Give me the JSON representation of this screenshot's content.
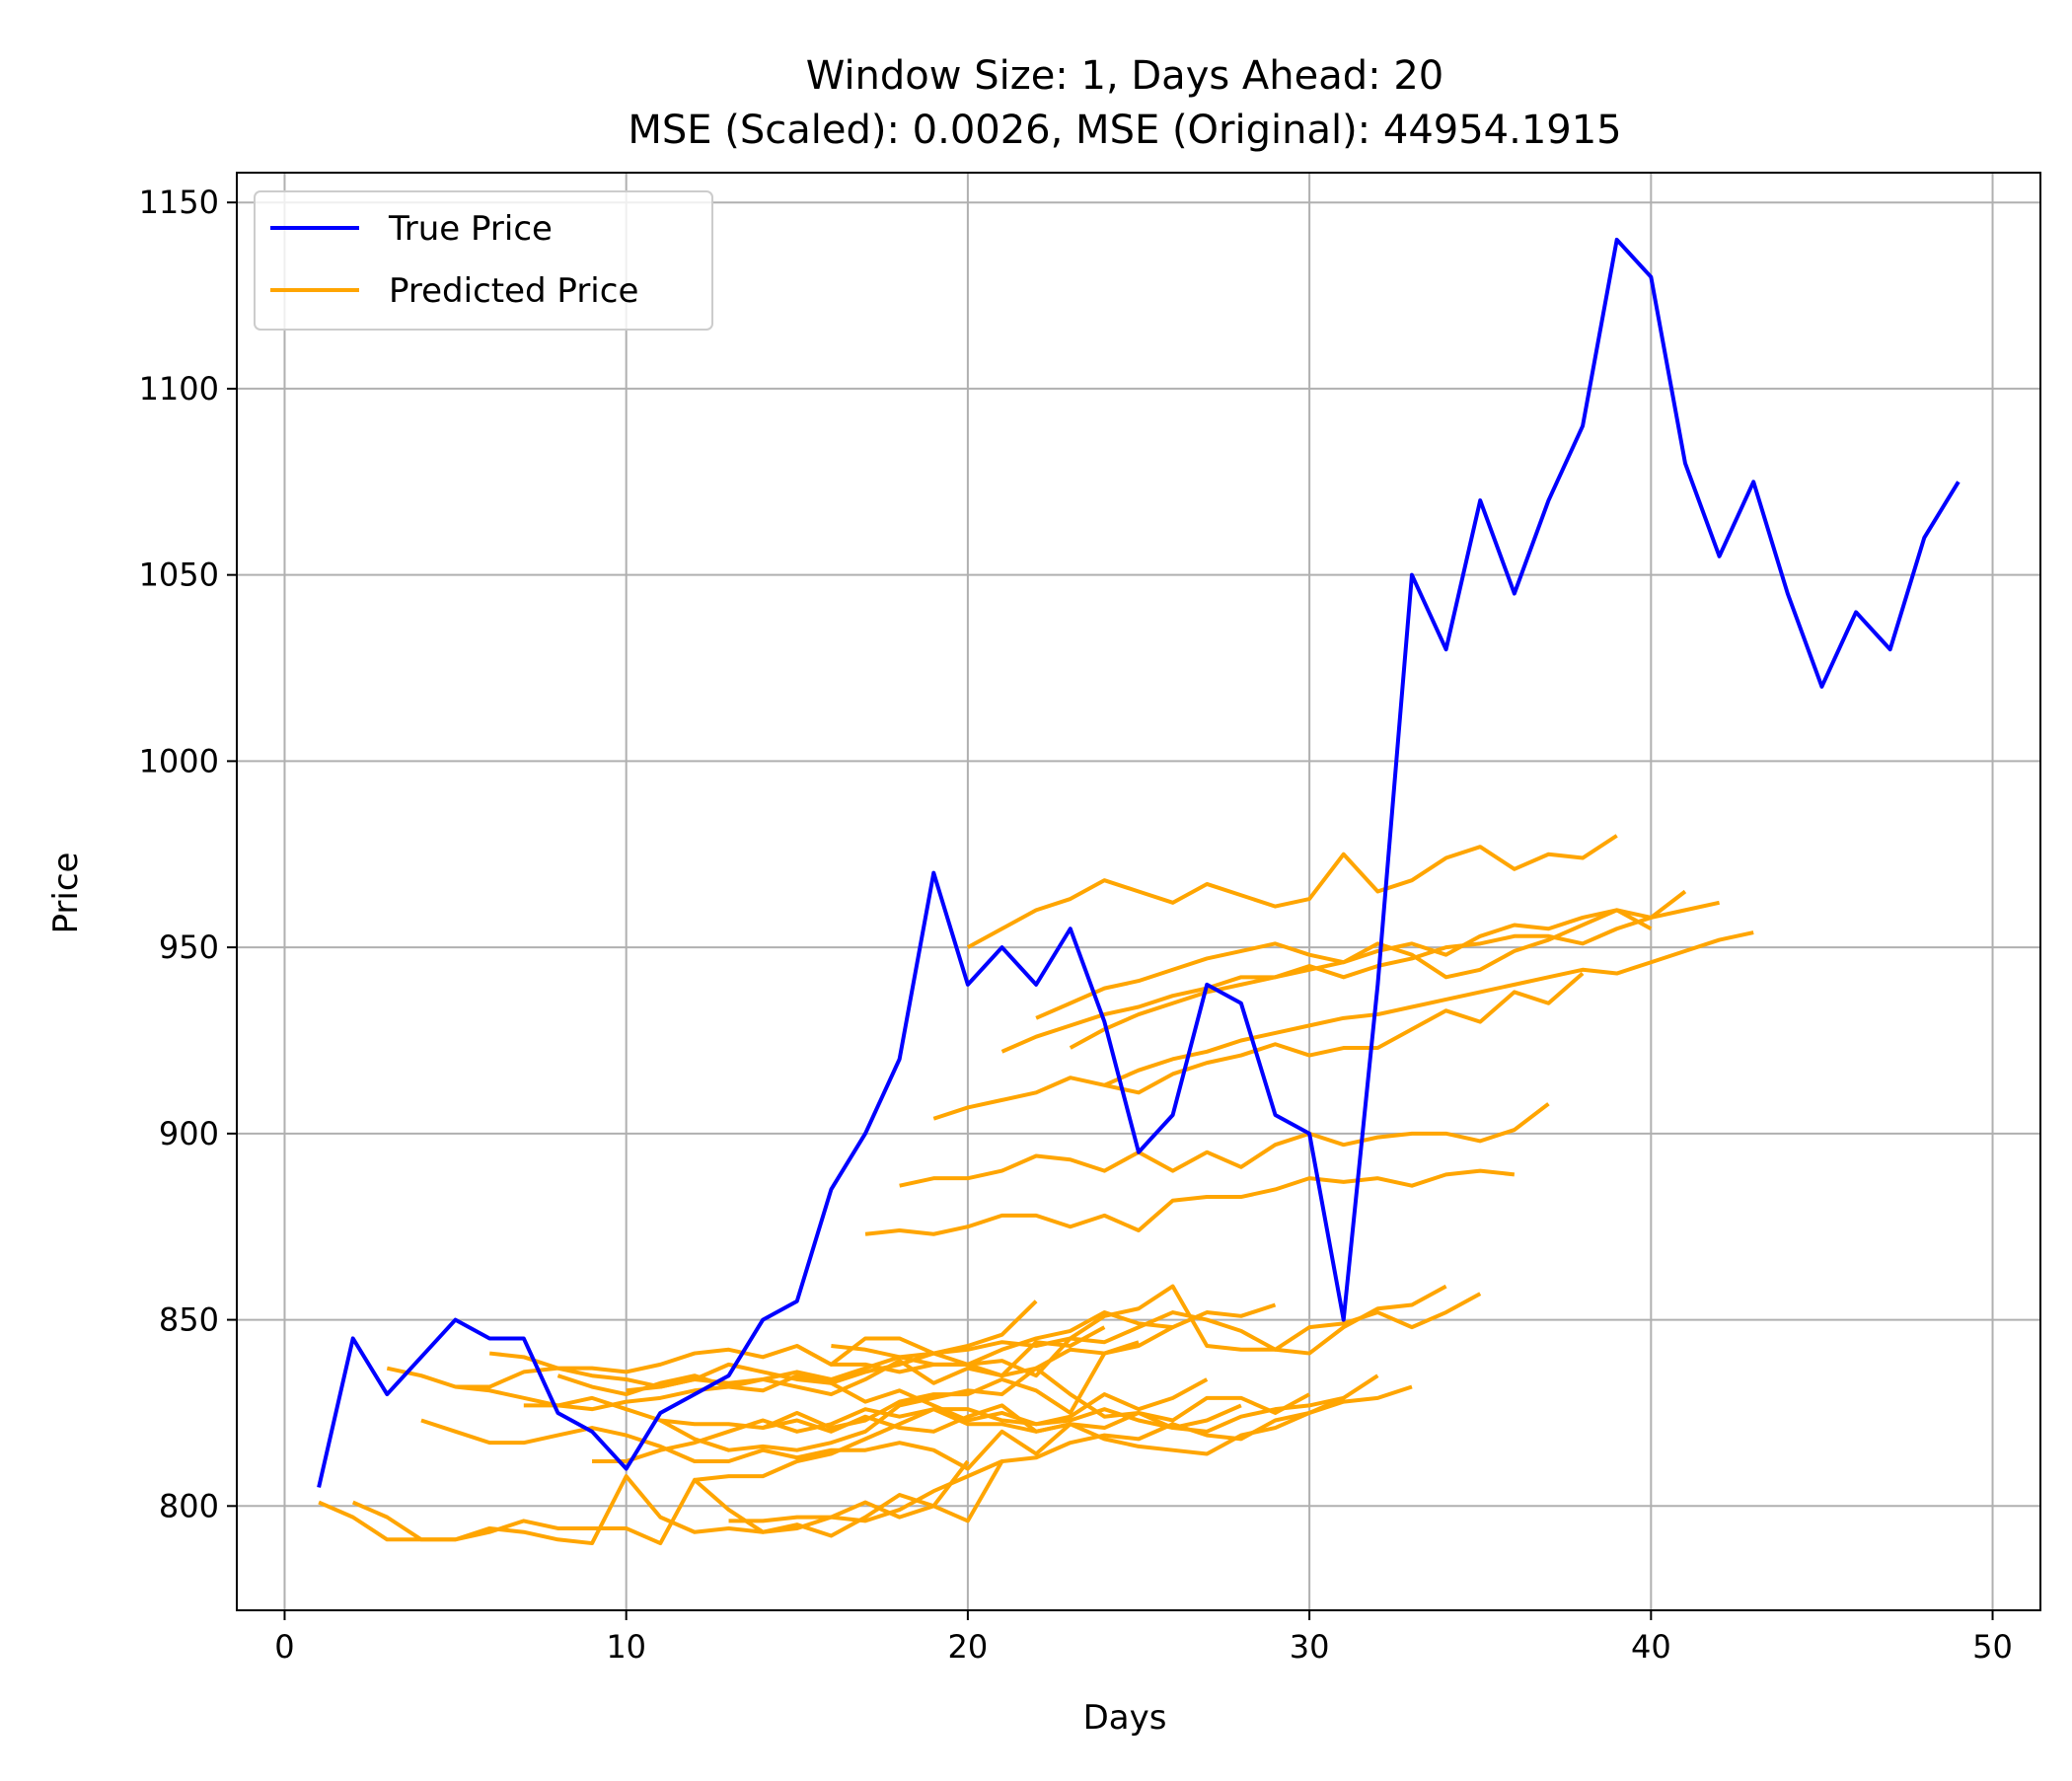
{
  "chart_data": {
    "type": "line",
    "title": "Window Size: 1, Days Ahead: 20",
    "subtitle": "MSE (Scaled): 0.0026, MSE (Original): 44954.1915",
    "xlabel": "Days",
    "ylabel": "Price",
    "xlim": [
      -1.4,
      51.4
    ],
    "ylim": [
      772,
      1158
    ],
    "xticks": [
      0,
      10,
      20,
      30,
      40,
      50
    ],
    "yticks": [
      800,
      850,
      900,
      950,
      1000,
      1050,
      1100,
      1150
    ],
    "grid": true,
    "legend": "upper left",
    "colors": {
      "true": "#0000ff",
      "predicted": "#ffa500",
      "grid": "#b0b0b0"
    },
    "legend_entries": [
      {
        "label": "True Price",
        "series": "true"
      },
      {
        "label": "Predicted Price",
        "series": "predicted"
      }
    ],
    "true_series": {
      "name": "True Price",
      "x": [
        1,
        2,
        3,
        4,
        5,
        6,
        7,
        8,
        9,
        10,
        11,
        12,
        13,
        14,
        15,
        16,
        17,
        18,
        19,
        20,
        21,
        22,
        23,
        24,
        25,
        26,
        27,
        28,
        29,
        30,
        31,
        32,
        33,
        34,
        35,
        36,
        37,
        38,
        39,
        40,
        41,
        42,
        43,
        44,
        45,
        46,
        47,
        48,
        49
      ],
      "y": [
        805,
        845,
        830,
        840,
        850,
        845,
        845,
        825,
        820,
        810,
        825,
        830,
        835,
        850,
        855,
        885,
        900,
        920,
        970,
        940,
        950,
        940,
        955,
        930,
        895,
        905,
        940,
        935,
        905,
        900,
        850,
        940,
        1050,
        1030,
        1070,
        1045,
        1070,
        1090,
        1140,
        1130,
        1080,
        1055,
        1075,
        1045,
        1020,
        1040,
        1030,
        1060,
        1075
      ]
    },
    "predicted_series": [
      {
        "x0": 1,
        "y": [
          801,
          797,
          791,
          791,
          791,
          794,
          793,
          791,
          790,
          808,
          797,
          793,
          794,
          793,
          794,
          797,
          801,
          797,
          800,
          812
        ]
      },
      {
        "x0": 2,
        "y": [
          801,
          797,
          791,
          791,
          793,
          796,
          794,
          794,
          794,
          790,
          807,
          799,
          793,
          795,
          792,
          797,
          803,
          800,
          796,
          812
        ]
      },
      {
        "x0": 3,
        "y": [
          837,
          835,
          832,
          831,
          829,
          827,
          826,
          828,
          829,
          831,
          832,
          834,
          836,
          834,
          837,
          840,
          841,
          843,
          846,
          855
        ]
      },
      {
        "x0": 4,
        "y": [
          823,
          820,
          817,
          817,
          819,
          821,
          819,
          816,
          812,
          812,
          815,
          813,
          815,
          815,
          817,
          815,
          810,
          820,
          814,
          822
        ]
      },
      {
        "x0": 5,
        "y": [
          832,
          832,
          836,
          837,
          837,
          836,
          838,
          841,
          842,
          840,
          843,
          838,
          838,
          836,
          838,
          838,
          835,
          844,
          843,
          848
        ]
      },
      {
        "x0": 6,
        "y": [
          841,
          840,
          837,
          835,
          834,
          832,
          834,
          833,
          834,
          832,
          830,
          834,
          839,
          833,
          837,
          835,
          837,
          842,
          841,
          844
        ]
      },
      {
        "x0": 7,
        "y": [
          827,
          827,
          829,
          826,
          823,
          822,
          822,
          821,
          825,
          821,
          823,
          828,
          830,
          830,
          834,
          831,
          825,
          841,
          843,
          848
        ]
      },
      {
        "x0": 8,
        "y": [
          835,
          832,
          830,
          833,
          835,
          832,
          831,
          835,
          833,
          828,
          831,
          827,
          823,
          825,
          822,
          824,
          830,
          826,
          829,
          834
        ]
      },
      {
        "x0": 9,
        "y": [
          812,
          812,
          815,
          817,
          820,
          823,
          820,
          822,
          826,
          824,
          826,
          822,
          822,
          820,
          822,
          821,
          825,
          821,
          823,
          827
        ]
      },
      {
        "x0": 10,
        "y": [
          831,
          832,
          834,
          838,
          836,
          834,
          833,
          836,
          838,
          841,
          838,
          842,
          845,
          847,
          852,
          849,
          848,
          852,
          851,
          854
        ]
      },
      {
        "x0": 11,
        "y": [
          823,
          818,
          815,
          816,
          815,
          817,
          820,
          827,
          829,
          831,
          830,
          837,
          830,
          824,
          825,
          823,
          829,
          829,
          825,
          830
        ]
      },
      {
        "x0": 12,
        "y": [
          807,
          808,
          808,
          812,
          814,
          818,
          822,
          826,
          826,
          823,
          822,
          823,
          826,
          823,
          821,
          820,
          824,
          826,
          827,
          829
        ]
      },
      {
        "x0": 13,
        "y": [
          796,
          796,
          797,
          797,
          796,
          799,
          804,
          808,
          812,
          813,
          817,
          819,
          818,
          822,
          819,
          818,
          823,
          825,
          829,
          835
        ]
      },
      {
        "x0": 14,
        "y": [
          821,
          823,
          820,
          824,
          821,
          820,
          824,
          827,
          820,
          822,
          818,
          816,
          815,
          814,
          819,
          821,
          825,
          828,
          829,
          832
        ]
      },
      {
        "x0": 15,
        "y": [
          843,
          838,
          845,
          845,
          841,
          842,
          844,
          843,
          845,
          851,
          853,
          859,
          843,
          842,
          842,
          841,
          848,
          853,
          854,
          859
        ]
      },
      {
        "x0": 16,
        "y": [
          843,
          842,
          840,
          838,
          838,
          839,
          835,
          845,
          844,
          848,
          852,
          850,
          847,
          842,
          848,
          849,
          852,
          848,
          852,
          857
        ]
      },
      {
        "x0": 17,
        "y": [
          873,
          874,
          873,
          875,
          878,
          878,
          875,
          878,
          874,
          882,
          883,
          883,
          885,
          888,
          887,
          888,
          886,
          889,
          890,
          889
        ]
      },
      {
        "x0": 18,
        "y": [
          886,
          888,
          888,
          890,
          894,
          893,
          890,
          895,
          890,
          895,
          891,
          897,
          900,
          897,
          899,
          900,
          900,
          898,
          901,
          908
        ]
      },
      {
        "x0": 19,
        "y": [
          904,
          907,
          909,
          911,
          915,
          913,
          911,
          916,
          919,
          921,
          924,
          921,
          923,
          923,
          928,
          933,
          930,
          938,
          935,
          943
        ]
      },
      {
        "x0": 20,
        "y": [
          950,
          955,
          960,
          963,
          968,
          965,
          962,
          967,
          964,
          961,
          963,
          975,
          965,
          968,
          974,
          977,
          971,
          975,
          974,
          980
        ]
      },
      {
        "x0": 21,
        "y": [
          922,
          926,
          929,
          932,
          934,
          937,
          939,
          942,
          942,
          944,
          946,
          949,
          951,
          948,
          953,
          956,
          955,
          958,
          960,
          955
        ]
      },
      {
        "x0": 22,
        "y": [
          931,
          935,
          939,
          941,
          944,
          947,
          949,
          951,
          948,
          946,
          951,
          948,
          942,
          944,
          949,
          952,
          956,
          960,
          958,
          965
        ]
      },
      {
        "x0": 23,
        "y": [
          923,
          928,
          932,
          935,
          938,
          940,
          942,
          945,
          942,
          945,
          947,
          950,
          951,
          953,
          953,
          951,
          955,
          958,
          960,
          962
        ]
      },
      {
        "x0": 24,
        "y": [
          913,
          917,
          920,
          922,
          925,
          927,
          929,
          931,
          932,
          934,
          936,
          938,
          940,
          942,
          944,
          943,
          946,
          949,
          952,
          954
        ]
      }
    ]
  }
}
